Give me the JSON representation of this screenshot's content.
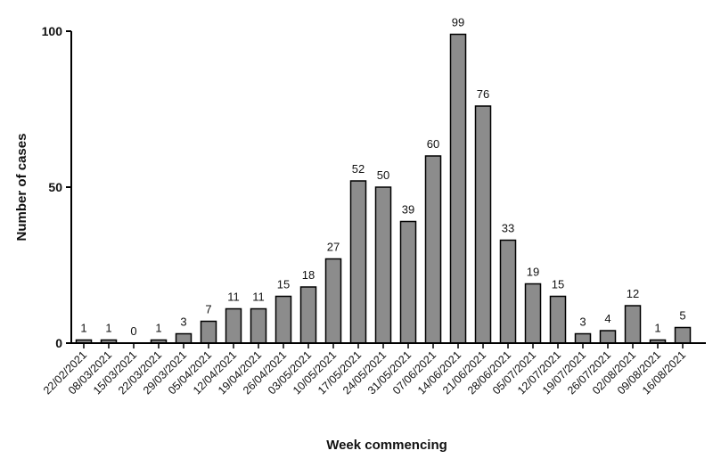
{
  "chart_data": {
    "type": "bar",
    "title": "",
    "xlabel": "Week commencing",
    "ylabel": "Number of cases",
    "ylim": [
      0,
      100
    ],
    "yticks": [
      0,
      50,
      100
    ],
    "grid": false,
    "legend": "none",
    "bar_color": "#8c8c8c",
    "bar_edge_color": "#000000",
    "categories": [
      "22/02/2021",
      "08/03/2021",
      "15/03/2021",
      "22/03/2021",
      "29/03/2021",
      "05/04/2021",
      "12/04/2021",
      "19/04/2021",
      "26/04/2021",
      "03/05/2021",
      "10/05/2021",
      "17/05/2021",
      "24/05/2021",
      "31/05/2021",
      "07/06/2021",
      "14/06/2021",
      "21/06/2021",
      "28/06/2021",
      "05/07/2021",
      "12/07/2021",
      "19/07/2021",
      "26/07/2021",
      "02/08/2021",
      "09/08/2021",
      "16/08/2021"
    ],
    "values": [
      1,
      1,
      0,
      1,
      3,
      7,
      11,
      11,
      15,
      18,
      27,
      52,
      50,
      39,
      60,
      99,
      76,
      33,
      19,
      15,
      3,
      4,
      12,
      1,
      5
    ]
  }
}
